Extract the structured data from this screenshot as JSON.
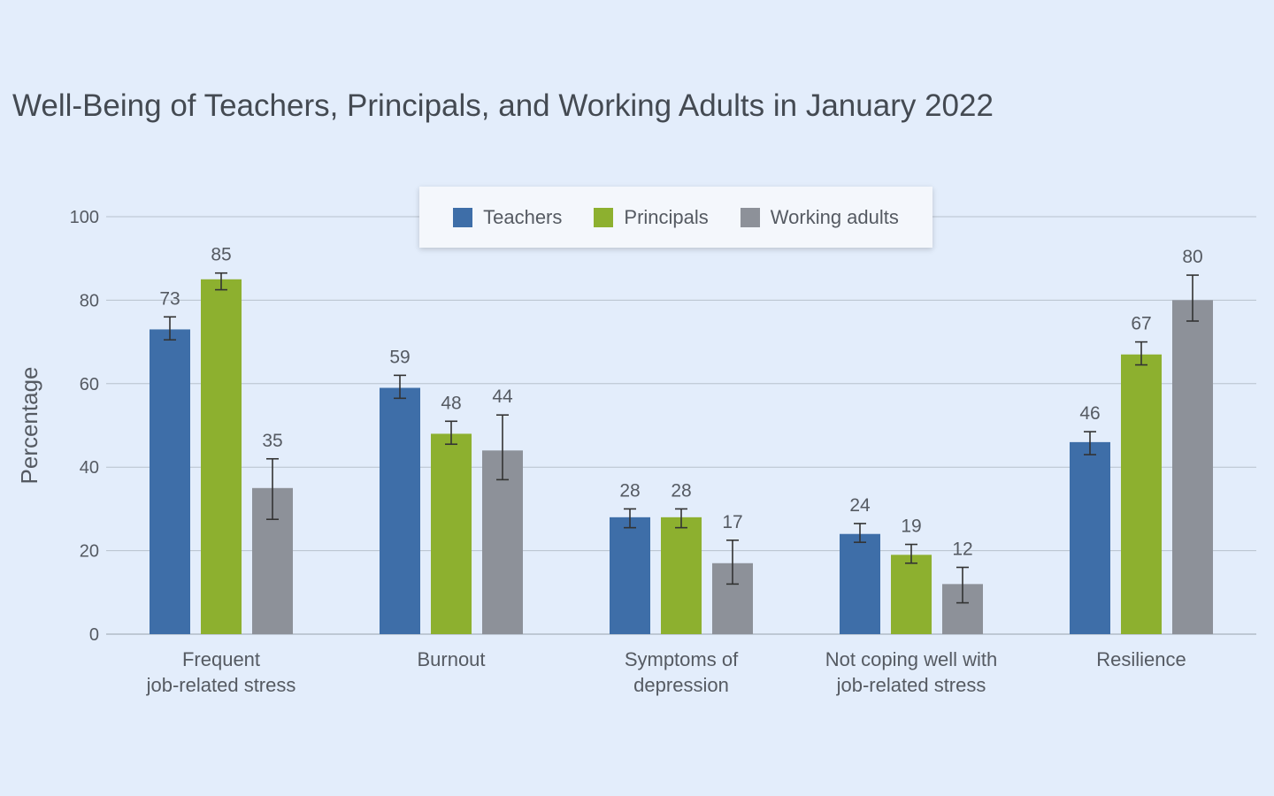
{
  "chart_data": {
    "type": "bar",
    "title": "Well-Being of Teachers, Principals, and Working Adults in January 2022",
    "ylabel": "Percentage",
    "xlabel": "",
    "ylim": [
      0,
      100
    ],
    "yticks": [
      0,
      20,
      40,
      60,
      80,
      100
    ],
    "grid": true,
    "legend_position": "top-center",
    "categories": [
      [
        "Frequent",
        "job-related stress"
      ],
      [
        "Burnout"
      ],
      [
        "Symptoms of",
        "depression"
      ],
      [
        "Not coping well with",
        "job-related stress"
      ],
      [
        "Resilience"
      ]
    ],
    "series": [
      {
        "name": "Teachers",
        "color": "#3e6ea8",
        "values": [
          73,
          59,
          28,
          24,
          46
        ],
        "error_low": [
          70.5,
          56.5,
          25.5,
          22,
          43
        ],
        "error_high": [
          76,
          62,
          30,
          26.5,
          48.5
        ]
      },
      {
        "name": "Principals",
        "color": "#8db02f",
        "values": [
          85,
          48,
          28,
          19,
          67
        ],
        "error_low": [
          82.5,
          45.5,
          25.5,
          17,
          64.5
        ],
        "error_high": [
          86.5,
          51,
          30,
          21.5,
          70
        ]
      },
      {
        "name": "Working adults",
        "color": "#8d9199",
        "values": [
          35,
          44,
          17,
          12,
          80
        ],
        "error_low": [
          27.5,
          37,
          12,
          7.5,
          75
        ],
        "error_high": [
          42,
          52.5,
          22.5,
          16,
          86
        ]
      }
    ]
  }
}
